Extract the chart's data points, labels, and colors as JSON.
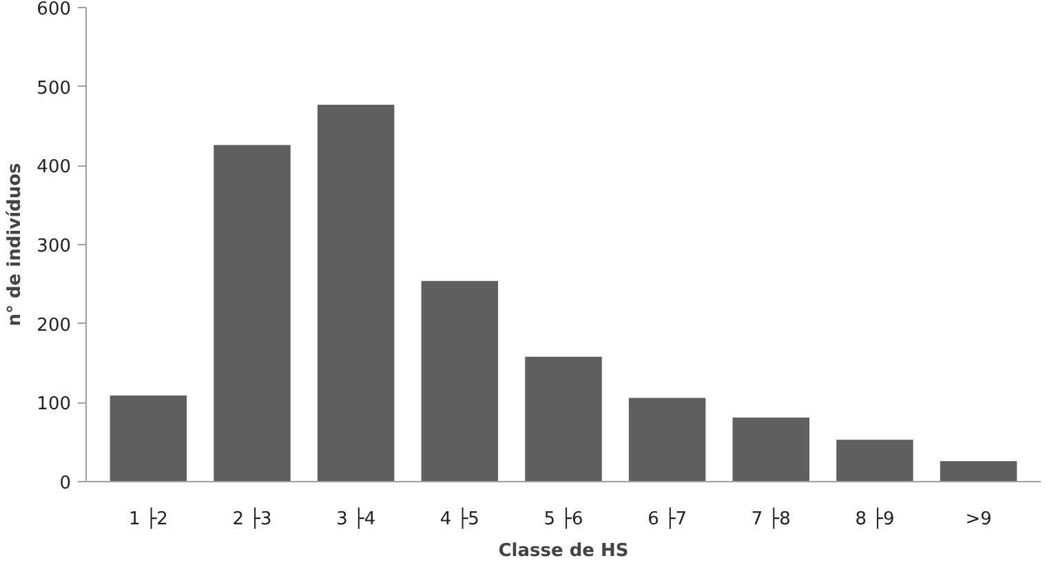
{
  "chart_data": {
    "type": "bar",
    "xlabel": "Classe de HS",
    "ylabel": "n° de indivíduos",
    "categories": [
      "1 ├2",
      "2 ├3",
      "3 ├4",
      "4 ├5",
      "5 ├6",
      "6 ├7",
      "7 ├8",
      "8 ├9",
      ">9"
    ],
    "values": [
      109,
      426,
      477,
      254,
      158,
      106,
      81,
      53,
      26
    ],
    "color": "#5f5f5f",
    "ylim": [
      0,
      600
    ],
    "yticks": [
      0,
      100,
      200,
      300,
      400,
      500,
      600
    ],
    "grid": false
  }
}
